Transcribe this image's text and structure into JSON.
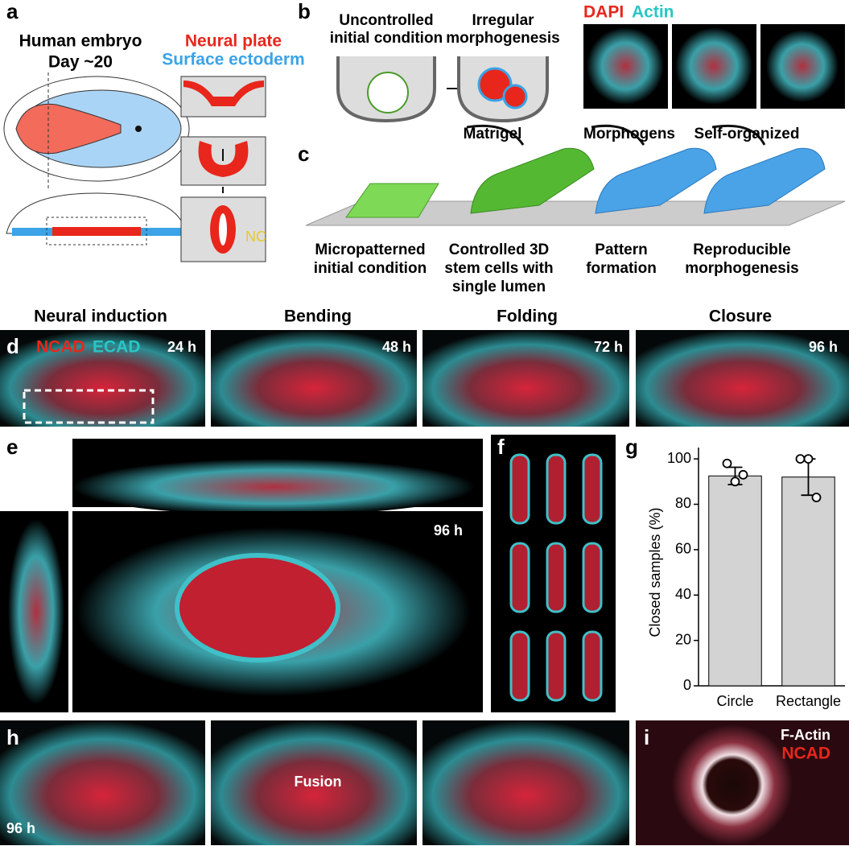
{
  "panel_labels": [
    "a",
    "b",
    "c",
    "d",
    "e",
    "f",
    "g",
    "h",
    "i"
  ],
  "a": {
    "title": [
      "Human embryo",
      "Day ~20"
    ],
    "legend": [
      "Neural plate",
      "Surface ectoderm"
    ],
    "nc": "NC"
  },
  "b": {
    "steps": [
      [
        "Uncontrolled",
        "initial condition"
      ],
      [
        "Irregular",
        "morphogenesis"
      ]
    ],
    "stains": [
      "DAPI",
      "Actin"
    ]
  },
  "c": {
    "arrows": [
      "Matrigel",
      "Morphogens",
      "Self-organized"
    ],
    "labels": [
      [
        "Micropatterned",
        "initial condition"
      ],
      [
        "Controlled 3D",
        "stem cells with",
        "single lumen"
      ],
      [
        "Pattern",
        "formation"
      ],
      [
        "Reproducible",
        "morphogenesis"
      ]
    ]
  },
  "d": {
    "stages": [
      "Neural induction",
      "Bending",
      "Folding",
      "Closure"
    ],
    "stains": [
      "NCAD",
      "ECAD"
    ],
    "times": [
      "24 h",
      "48 h",
      "72 h",
      "96 h"
    ]
  },
  "e": {
    "time": "96 h"
  },
  "h": {
    "time": "96 h",
    "fusion": "Fusion"
  },
  "i": {
    "stains": [
      "F-Actin",
      "NCAD"
    ]
  },
  "chart_data": {
    "type": "bar",
    "ylabel": "Closed samples (%)",
    "categories": [
      "Circle",
      "Rectangle"
    ],
    "values": [
      92.5,
      92
    ],
    "errors": [
      3.8,
      8
    ],
    "points": [
      [
        98,
        90,
        93
      ],
      [
        100,
        100,
        83
      ]
    ],
    "color": "#d3d3d3",
    "ylim": [
      0,
      105
    ],
    "yticks": [
      0,
      20,
      40,
      60,
      80,
      100
    ]
  }
}
